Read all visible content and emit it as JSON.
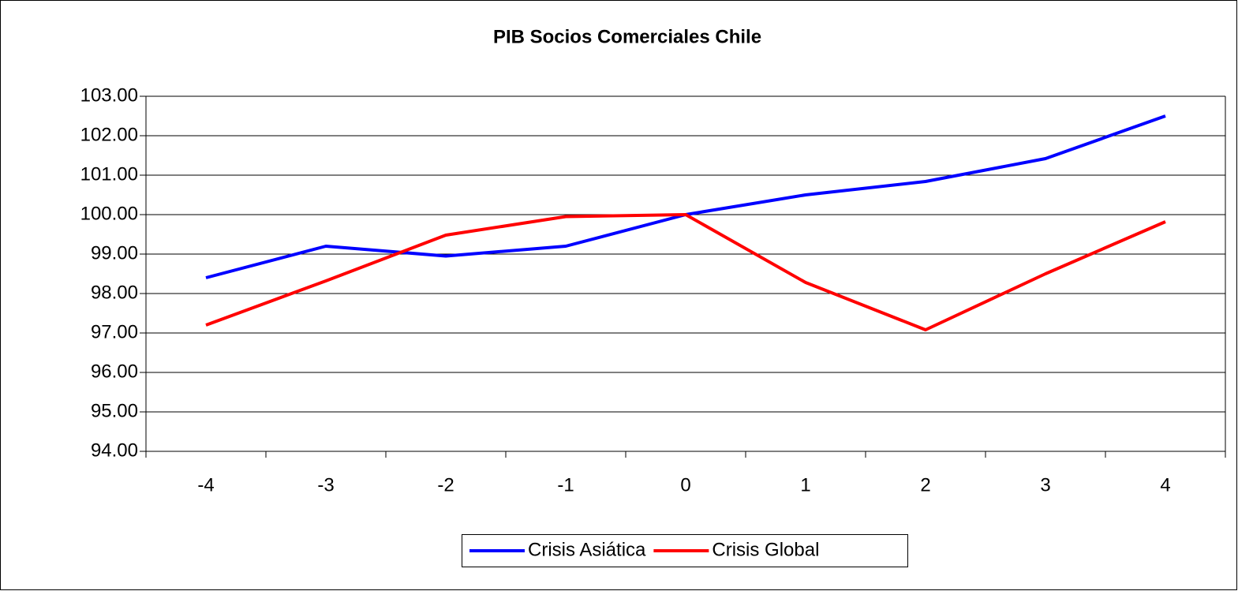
{
  "chart_data": {
    "type": "line",
    "title": "PIB Socios Comerciales Chile",
    "categories": [
      "-4",
      "-3",
      "-2",
      "-1",
      "0",
      "1",
      "2",
      "3",
      "4"
    ],
    "series": [
      {
        "name": "Crisis Asiática",
        "color": "#0000ff",
        "values": [
          98.4,
          99.2,
          98.95,
          99.2,
          100,
          100.5,
          100.84,
          101.42,
          102.5
        ]
      },
      {
        "name": "Crisis Global",
        "color": "#ff0000",
        "values": [
          97.2,
          98.32,
          99.48,
          99.95,
          100,
          98.28,
          97.08,
          98.5,
          99.82
        ]
      }
    ],
    "ylim": [
      94,
      103
    ],
    "yticks": [
      {
        "value": 94,
        "label": "94.00"
      },
      {
        "value": 95,
        "label": "95.00"
      },
      {
        "value": 96,
        "label": "96.00"
      },
      {
        "value": 97,
        "label": "97.00"
      },
      {
        "value": 98,
        "label": "98.00"
      },
      {
        "value": 99,
        "label": "99.00"
      },
      {
        "value": 100,
        "label": "100.00"
      },
      {
        "value": 101,
        "label": "101.00"
      },
      {
        "value": 102,
        "label": "102.00"
      },
      {
        "value": 103,
        "label": "103.00"
      }
    ],
    "grid": true,
    "legend": "bottom"
  }
}
